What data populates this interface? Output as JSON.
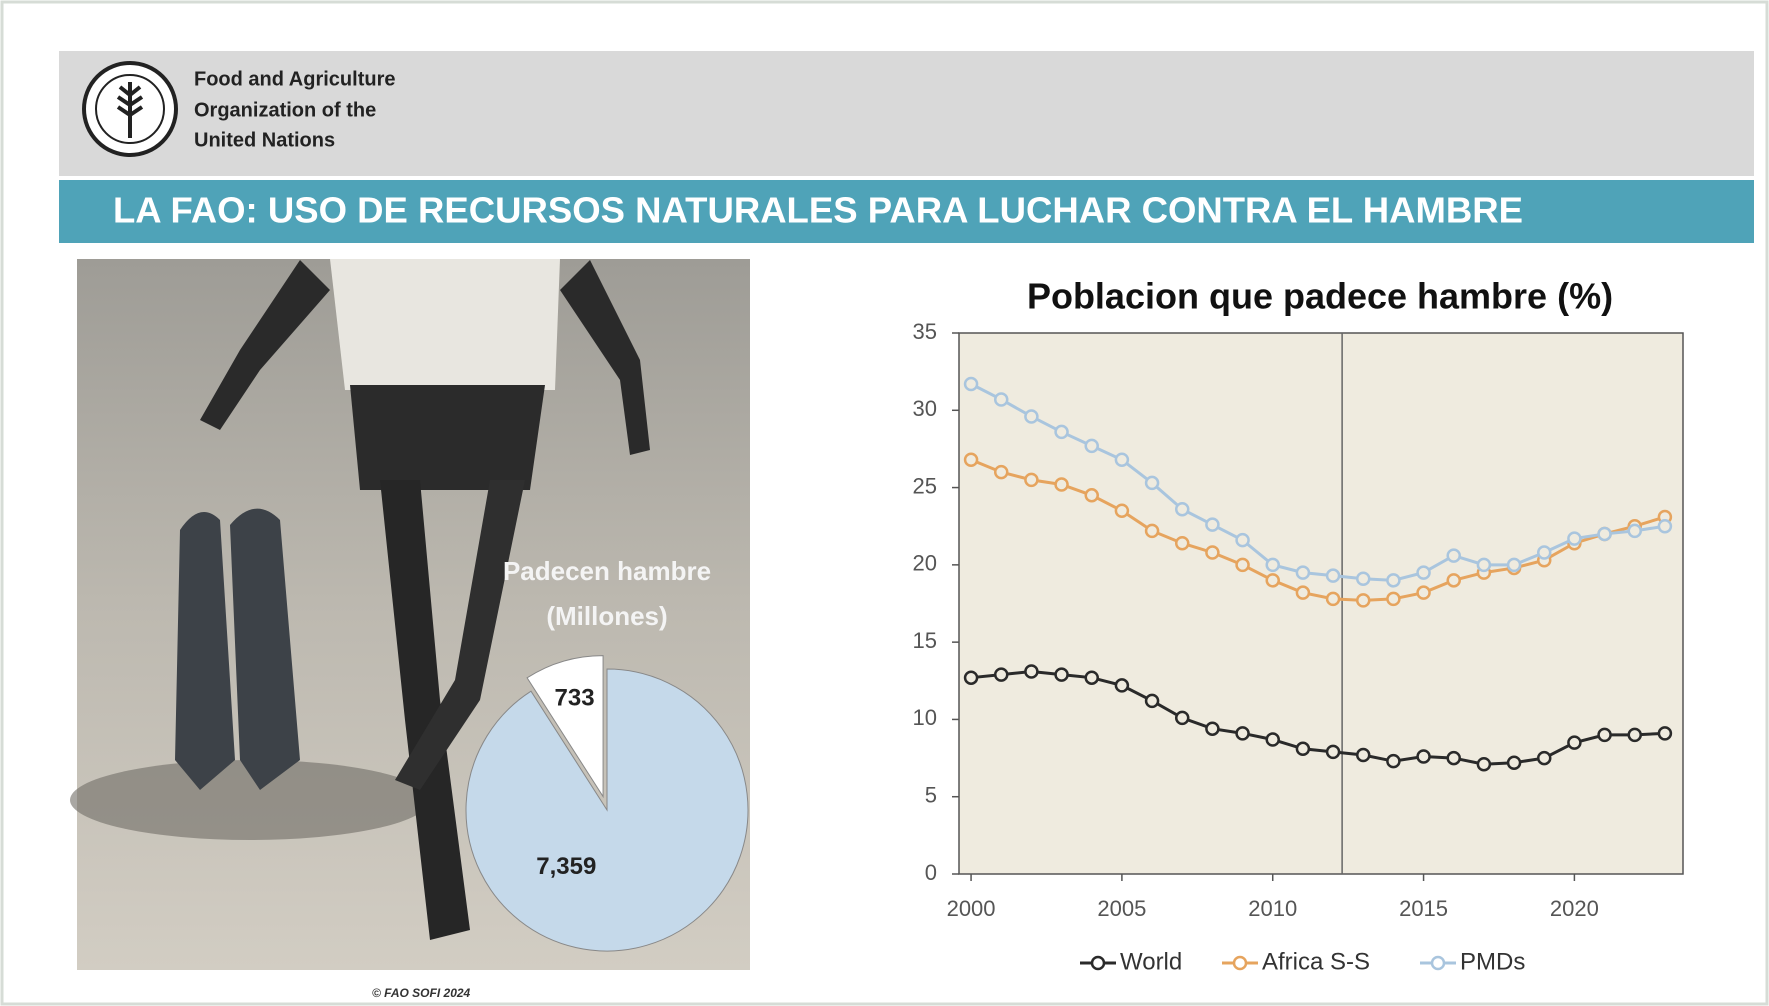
{
  "header": {
    "org_lines": [
      "Food and Agriculture",
      "Organization of the",
      "United Nations"
    ]
  },
  "banner": {
    "title": "LA FAO: USO DE RECURSOS NATURALES PARA LUCHAR CONTRA EL HAMBRE"
  },
  "credit": "© FAO SOFI 2024",
  "chart_data": [
    {
      "type": "pie",
      "title": "Padecen hambre",
      "subtitle": "(Millones)",
      "values": [
        733,
        7359
      ],
      "value_labels": [
        "733",
        "7,359"
      ],
      "colors": [
        "#ffffff",
        "#c5d9ea"
      ]
    },
    {
      "type": "line",
      "title": "Poblacion que padece hambre (%)",
      "x": [
        2000,
        2001,
        2002,
        2003,
        2004,
        2005,
        2006,
        2007,
        2008,
        2009,
        2010,
        2011,
        2012,
        2013,
        2014,
        2015,
        2016,
        2017,
        2018,
        2019,
        2020,
        2021,
        2022,
        2023
      ],
      "series": [
        {
          "name": "World",
          "color": "#2a2a2a",
          "values": [
            12.7,
            12.9,
            13.1,
            12.9,
            12.7,
            12.2,
            11.2,
            10.1,
            9.4,
            9.1,
            8.7,
            8.1,
            7.9,
            7.7,
            7.3,
            7.6,
            7.5,
            7.1,
            7.2,
            7.5,
            8.5,
            9.0,
            9.0,
            9.1
          ]
        },
        {
          "name": "Africa S-S",
          "color": "#e6a45e",
          "values": [
            26.8,
            26.0,
            25.5,
            25.2,
            24.5,
            23.5,
            22.2,
            21.4,
            20.8,
            20.0,
            19.0,
            18.2,
            17.8,
            17.7,
            17.8,
            18.2,
            19.0,
            19.5,
            19.8,
            20.3,
            21.4,
            22.0,
            22.5,
            23.1
          ]
        },
        {
          "name": "PMDs",
          "color": "#a9c5de",
          "values": [
            31.7,
            30.7,
            29.6,
            28.6,
            27.7,
            26.8,
            25.3,
            23.6,
            22.6,
            21.6,
            20.0,
            19.5,
            19.3,
            19.1,
            19.0,
            19.5,
            20.6,
            20.0,
            20.0,
            20.8,
            21.7,
            22.0,
            22.2,
            22.5
          ]
        }
      ],
      "xlim": [
        1999.6,
        2023.6
      ],
      "xticks": [
        2000,
        2005,
        2010,
        2015,
        2020
      ],
      "ylim": [
        0,
        35
      ],
      "yticks": [
        0,
        5,
        10,
        15,
        20,
        25,
        30,
        35
      ],
      "marker_x": 2012.3,
      "legend": "bottom",
      "grid": false
    }
  ]
}
